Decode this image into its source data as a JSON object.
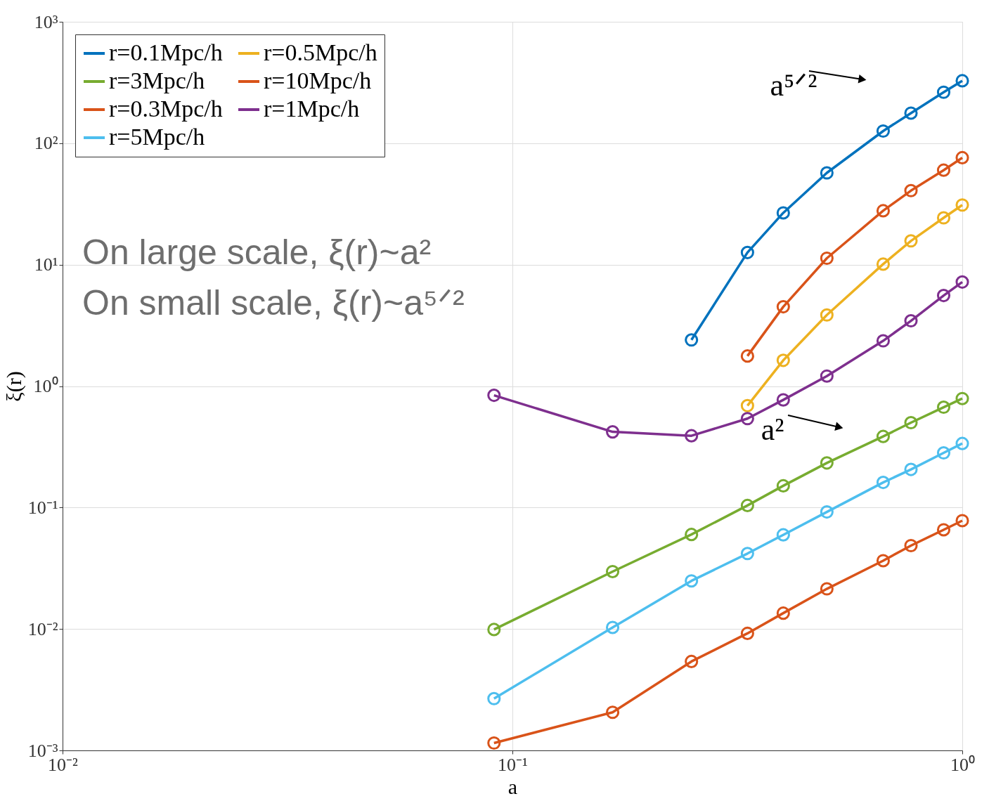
{
  "chart_data": {
    "type": "line",
    "xlabel": "a",
    "ylabel": "ξ(r)",
    "x": [
      0.091,
      0.167,
      0.25,
      0.333,
      0.4,
      0.5,
      0.667,
      0.769,
      0.909,
      1.0
    ],
    "series": [
      {
        "name": "r=0.1Mpc/h",
        "color": "#0072bd",
        "values": [
          null,
          null,
          2.4,
          12.6,
          26.7,
          57,
          126,
          177,
          263,
          327
        ]
      },
      {
        "name": "r=0.3Mpc/h",
        "color": "#d95319",
        "values": [
          null,
          null,
          null,
          1.77,
          4.5,
          11.3,
          27.8,
          40.7,
          60,
          76
        ]
      },
      {
        "name": "r=0.5Mpc/h",
        "color": "#edb120",
        "values": [
          null,
          null,
          null,
          0.69,
          1.63,
          3.85,
          10.1,
          15.7,
          24.3,
          31
        ]
      },
      {
        "name": "r=1Mpc/h",
        "color": "#7e2f8e",
        "values": [
          0.84,
          0.42,
          0.39,
          0.54,
          0.77,
          1.21,
          2.36,
          3.45,
          5.57,
          7.2
        ]
      },
      {
        "name": "r=3Mpc/h",
        "color": "#77ac30",
        "values": [
          0.0099,
          0.0297,
          0.06,
          0.104,
          0.151,
          0.233,
          0.385,
          0.5,
          0.67,
          0.79
        ]
      },
      {
        "name": "r=5Mpc/h",
        "color": "#4dbeee",
        "values": [
          0.00267,
          0.0103,
          0.0249,
          0.0418,
          0.0596,
          0.092,
          0.161,
          0.206,
          0.282,
          0.337
        ]
      },
      {
        "name": "r=10Mpc/h",
        "color": "#d95319",
        "values": [
          0.00115,
          0.00206,
          0.0054,
          0.0092,
          0.0135,
          0.0214,
          0.0365,
          0.0486,
          0.0656,
          0.078
        ]
      }
    ],
    "log": "xy",
    "xlim": [
      0.01,
      1
    ],
    "ylim": [
      0.001,
      1000
    ],
    "xticks": [
      {
        "value": 0.01,
        "label": "10⁻²"
      },
      {
        "value": 0.1,
        "label": "10⁻¹"
      },
      {
        "value": 1,
        "label": "10⁰"
      }
    ],
    "yticks": [
      {
        "value": 0.001,
        "label": "10⁻³"
      },
      {
        "value": 0.01,
        "label": "10⁻²"
      },
      {
        "value": 0.1,
        "label": "10⁻¹"
      },
      {
        "value": 1,
        "label": "10⁰"
      },
      {
        "value": 10,
        "label": "10¹"
      },
      {
        "value": 100,
        "label": "10²"
      },
      {
        "value": 1000,
        "label": "10³"
      }
    ],
    "grid": true,
    "legend": "top left",
    "marker": "circle",
    "line_style": "solid",
    "annotations": [
      "On large scale, ξ(r)~a²",
      "On small scale, ξ(r)~a⁵ᐟ²",
      "a⁵ᐟ²",
      "a²"
    ]
  }
}
